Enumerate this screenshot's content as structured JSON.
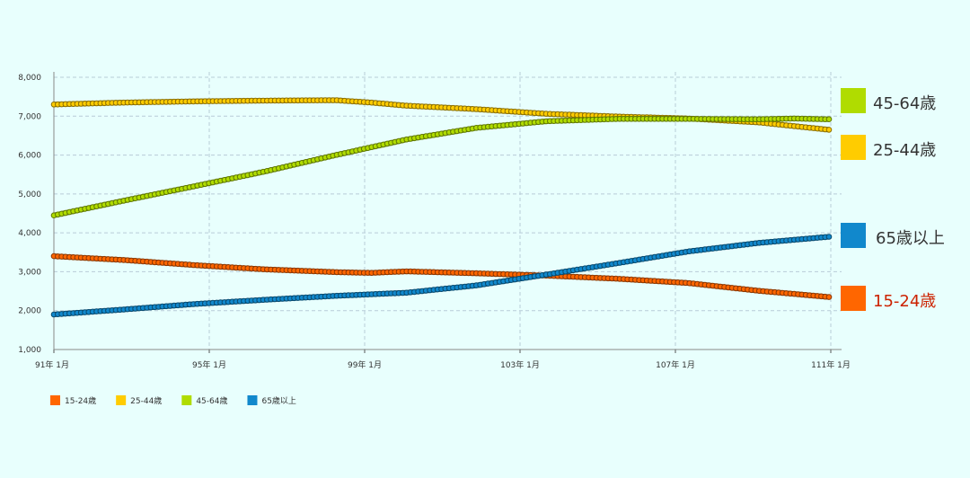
{
  "chart_data": {
    "type": "line",
    "x_tick_labels": [
      "91年 1月",
      "95年 1月",
      "99年 1月",
      "103年 1月",
      "107年 1月",
      "111年 1月"
    ],
    "x_range": [
      1991,
      2022.15
    ],
    "y_ticks": [
      "1,000",
      "2,000",
      "3,000",
      "4,000",
      "5,000",
      "6,000",
      "7,000",
      "8,000"
    ],
    "ylim": [
      1000,
      8000
    ],
    "grid": true,
    "legend_position": "bottom-left",
    "series": [
      {
        "name": "15-24歳",
        "color": "#ff6600",
        "label_color": "#cc2200",
        "points": [
          [
            1991,
            3400
          ],
          [
            1993,
            3300
          ],
          [
            1995,
            3170
          ],
          [
            1997,
            3060
          ],
          [
            1999,
            2990
          ],
          [
            2000,
            2970
          ],
          [
            2001,
            3010
          ],
          [
            2003,
            2960
          ],
          [
            2005,
            2900
          ],
          [
            2007,
            2820
          ],
          [
            2009,
            2710
          ],
          [
            2011,
            2510
          ],
          [
            2013,
            2350
          ]
        ]
      },
      {
        "name": "25-44歳",
        "color": "#ffcc00",
        "label_color": "#333333",
        "points": [
          [
            1991,
            7300
          ],
          [
            1993,
            7350
          ],
          [
            1995,
            7380
          ],
          [
            1997,
            7400
          ],
          [
            1999,
            7410
          ],
          [
            2000,
            7350
          ],
          [
            2001,
            7270
          ],
          [
            2003,
            7180
          ],
          [
            2005,
            7060
          ],
          [
            2007,
            6990
          ],
          [
            2009,
            6940
          ],
          [
            2011,
            6840
          ],
          [
            2013,
            6650
          ]
        ]
      },
      {
        "name": "45-64歳",
        "color": "#b0dc00",
        "label_color": "#333333",
        "points": [
          [
            1991,
            4450
          ],
          [
            1993,
            4830
          ],
          [
            1995,
            5200
          ],
          [
            1997,
            5580
          ],
          [
            1999,
            6000
          ],
          [
            2001,
            6400
          ],
          [
            2003,
            6700
          ],
          [
            2005,
            6870
          ],
          [
            2007,
            6930
          ],
          [
            2009,
            6930
          ],
          [
            2011,
            6920
          ],
          [
            2012,
            6940
          ],
          [
            2013,
            6920
          ]
        ]
      },
      {
        "name": "65歳以上",
        "color": "#1188cc",
        "label_color": "#333333",
        "points": [
          [
            1991,
            1900
          ],
          [
            1993,
            2030
          ],
          [
            1995,
            2170
          ],
          [
            1997,
            2280
          ],
          [
            1999,
            2380
          ],
          [
            2001,
            2460
          ],
          [
            2003,
            2650
          ],
          [
            2005,
            2930
          ],
          [
            2007,
            3220
          ],
          [
            2009,
            3520
          ],
          [
            2011,
            3740
          ],
          [
            2013,
            3900
          ]
        ]
      }
    ],
    "right_labels": [
      {
        "name": "45-64歳",
        "color": "#b0dc00",
        "label_color": "#333333"
      },
      {
        "name": "25-44歳",
        "color": "#ffcc00",
        "label_color": "#333333"
      },
      {
        "name": "65歳以上",
        "color": "#1188cc",
        "label_color": "#333333"
      },
      {
        "name": "15-24歳",
        "color": "#ff6600",
        "label_color": "#cc2200"
      }
    ]
  }
}
